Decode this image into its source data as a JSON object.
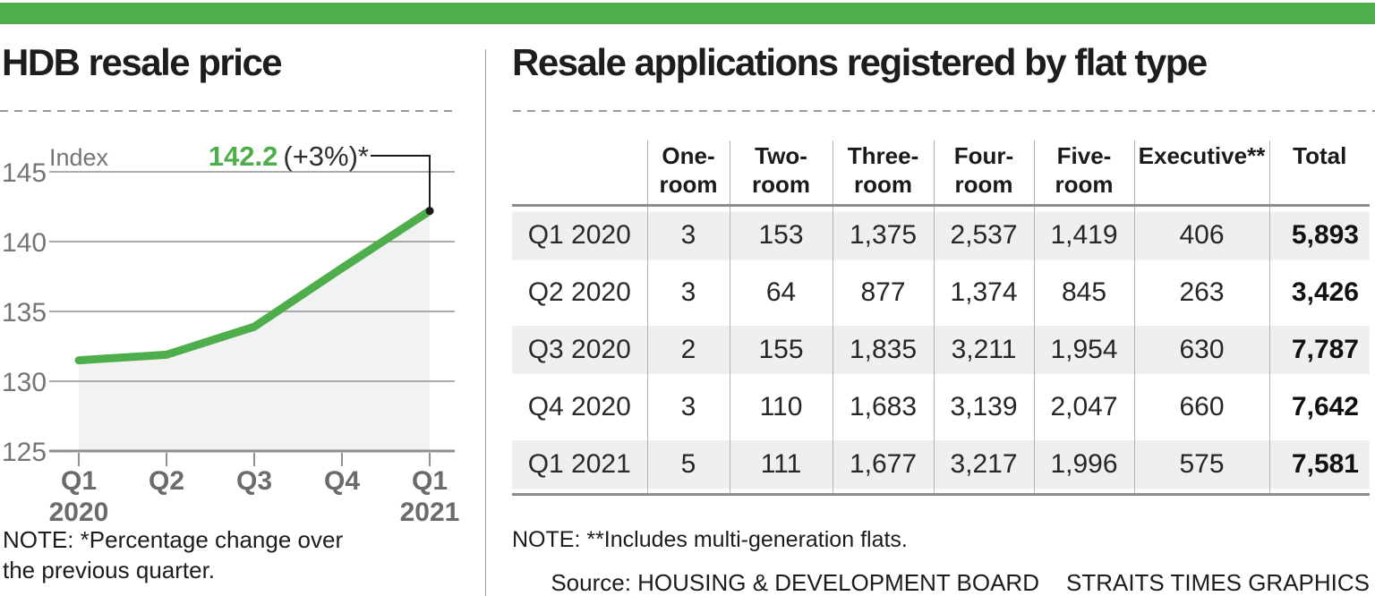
{
  "colors": {
    "accent_green": "#4fae4c",
    "grid_gray": "#8f8f8f",
    "area_fill": "#f2f2f2",
    "row_shade": "#efefef",
    "heavy_border": "#8c8c8c"
  },
  "left_panel": {
    "annotation_value": "142.2",
    "annotation_change": "(+3%)*",
    "note": "NOTE: *Percentage change over\nthe previous quarter."
  },
  "right_panel": {
    "note": "NOTE: **Includes multi-generation flats."
  },
  "footer": {
    "source": "Source: HOUSING & DEVELOPMENT BOARD",
    "credit": "STRAITS TIMES GRAPHICS"
  },
  "chart_data": [
    {
      "type": "line",
      "title": "HDB resale price",
      "ylabel": "Index",
      "x": [
        "Q1 2020",
        "Q2 2020",
        "Q3 2020",
        "Q4 2020",
        "Q1 2021"
      ],
      "x_tick_lines": [
        [
          "Q1",
          "2020"
        ],
        [
          "Q2"
        ],
        [
          "Q3"
        ],
        [
          "Q4"
        ],
        [
          "Q1",
          "2021"
        ]
      ],
      "values": [
        131.5,
        131.9,
        133.9,
        138.1,
        142.2
      ],
      "ylim": [
        125,
        145
      ],
      "yticks": [
        145,
        140,
        135,
        130,
        125
      ],
      "grid": true,
      "legend": "none",
      "line_color": "#4fae4c",
      "annotation": "142.2 (+3%)*"
    },
    {
      "type": "table",
      "title": "Resale applications registered by flat type",
      "columns": [
        "",
        "One-\nroom",
        "Two-\nroom",
        "Three-\nroom",
        "Four-\nroom",
        "Five-\nroom",
        "Executive**",
        "Total"
      ],
      "rows": [
        {
          "quarter": "Q1 2020",
          "values": [
            "3",
            "153",
            "1,375",
            "2,537",
            "1,419",
            "406"
          ],
          "total": "5,893"
        },
        {
          "quarter": "Q2 2020",
          "values": [
            "3",
            "64",
            "877",
            "1,374",
            "845",
            "263"
          ],
          "total": "3,426"
        },
        {
          "quarter": "Q3 2020",
          "values": [
            "2",
            "155",
            "1,835",
            "3,211",
            "1,954",
            "630"
          ],
          "total": "7,787"
        },
        {
          "quarter": "Q4 2020",
          "values": [
            "3",
            "110",
            "1,683",
            "3,139",
            "2,047",
            "660"
          ],
          "total": "7,642"
        },
        {
          "quarter": "Q1 2021",
          "values": [
            "5",
            "111",
            "1,677",
            "3,217",
            "1,996",
            "575"
          ],
          "total": "7,581"
        }
      ]
    }
  ]
}
